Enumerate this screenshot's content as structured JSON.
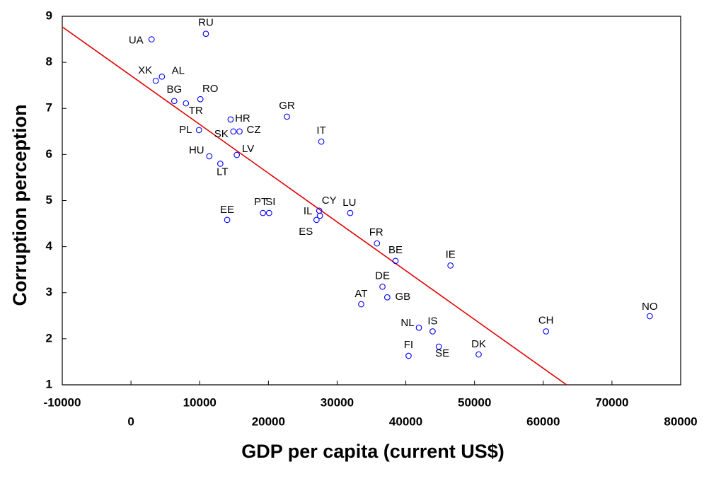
{
  "chart_data": {
    "type": "scatter",
    "xlabel": "GDP per capita (current US$)",
    "ylabel": "Corruption perception",
    "labels": [
      "UA",
      "RU",
      "XK",
      "AL",
      "BG",
      "TR",
      "RO",
      "HR",
      "GR",
      "PL",
      "SK",
      "CZ",
      "IT",
      "HU",
      "LV",
      "LT",
      "EE",
      "PT",
      "SI",
      "CY",
      "IL",
      "ES",
      "LU",
      "FR",
      "BE",
      "IE",
      "DE",
      "AT",
      "GB",
      "NL",
      "IS",
      "FI",
      "SE",
      "DK",
      "CH",
      "NO"
    ],
    "x": [
      3000,
      10900,
      3600,
      4500,
      6300,
      8000,
      10100,
      14500,
      22700,
      9900,
      14900,
      15800,
      27700,
      11400,
      15400,
      13000,
      14000,
      19200,
      20100,
      27400,
      27500,
      27000,
      31900,
      35800,
      38500,
      46500,
      36600,
      33500,
      37300,
      41900,
      43900,
      40400,
      44800,
      50600,
      60400,
      75500
    ],
    "y": [
      8.5,
      8.62,
      7.6,
      7.69,
      7.16,
      7.11,
      7.2,
      6.76,
      6.82,
      6.53,
      6.5,
      6.5,
      6.28,
      5.96,
      5.99,
      5.8,
      4.58,
      4.73,
      4.73,
      4.78,
      4.67,
      4.58,
      4.73,
      4.07,
      3.69,
      3.59,
      3.13,
      2.75,
      2.9,
      2.24,
      2.16,
      1.63,
      1.83,
      1.66,
      2.16,
      2.49
    ],
    "color": "#0000ff",
    "fit_line": {
      "x": [
        -10000,
        63400
      ],
      "y": [
        8.77,
        1
      ],
      "color": "#e00000"
    },
    "xlim": [
      -10000,
      80000
    ],
    "xticks": [
      -10000,
      0,
      10000,
      20000,
      30000,
      40000,
      50000,
      60000,
      70000,
      80000
    ],
    "ylim": [
      1,
      9
    ],
    "yticks": [
      1,
      2,
      3,
      4,
      5,
      6,
      7,
      8,
      9
    ],
    "grid": false
  }
}
